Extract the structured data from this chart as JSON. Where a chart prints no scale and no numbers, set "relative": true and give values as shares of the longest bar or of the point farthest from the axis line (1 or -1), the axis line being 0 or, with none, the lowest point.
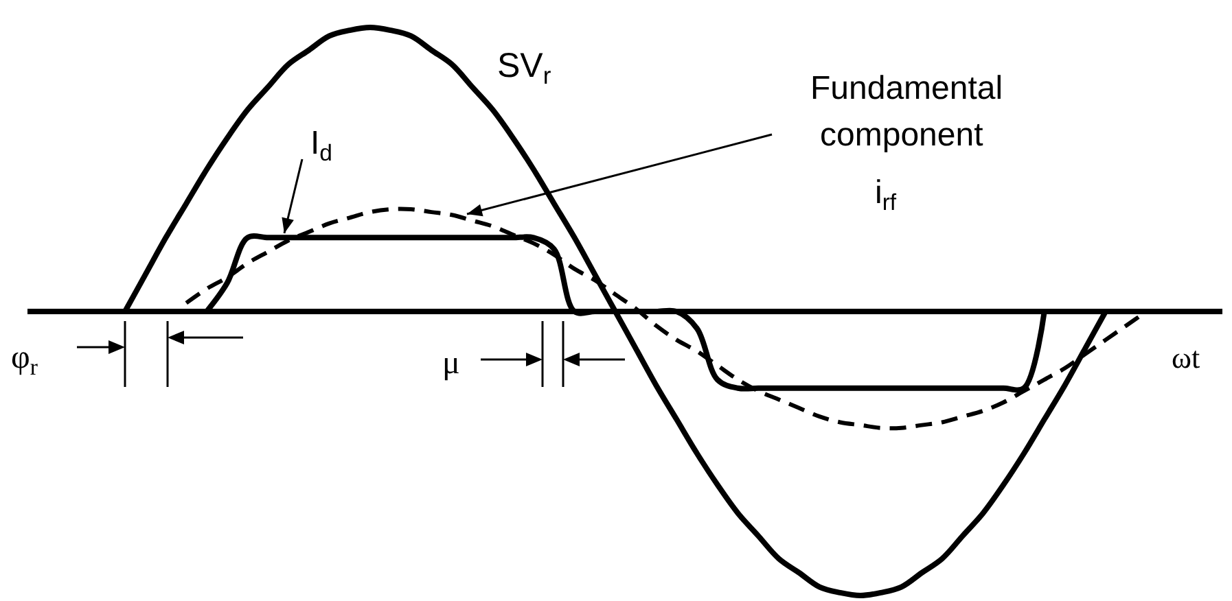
{
  "chart_data": {
    "type": "line",
    "relative": true,
    "xlabel": "ωt",
    "annotations": [
      "φ$_{r}$",
      "μ"
    ],
    "categories": [
      null,
      null,
      null,
      null,
      null,
      null,
      null,
      null,
      null,
      null,
      null,
      null,
      null,
      null,
      null,
      null,
      null,
      null,
      null,
      null,
      null,
      null,
      null,
      null,
      null,
      null,
      null,
      null,
      null,
      null,
      null,
      null,
      null,
      null,
      null,
      null,
      null,
      null,
      null,
      null,
      null,
      null,
      null,
      null,
      null,
      null,
      null,
      null,
      null,
      null,
      null
    ],
    "series": [
      {
        "name": "SV$_{r}$",
        "color": "#000000",
        "line_style": "solid",
        "values": [
          0,
          0.13,
          0.26,
          0.38,
          0.5,
          0.61,
          0.71,
          0.79,
          0.87,
          0.92,
          0.97,
          0.99,
          1,
          0.99,
          0.97,
          0.92,
          0.87,
          0.79,
          0.71,
          0.61,
          0.5,
          0.38,
          0.26,
          0.13,
          0,
          -0.13,
          -0.26,
          -0.38,
          -0.5,
          -0.61,
          -0.71,
          -0.79,
          -0.87,
          -0.92,
          -0.97,
          -0.99,
          -1,
          -0.99,
          -0.97,
          -0.92,
          -0.87,
          -0.79,
          -0.71,
          -0.61,
          -0.5,
          -0.38,
          -0.26,
          -0.13,
          0,
          null,
          null
        ]
      },
      {
        "name": "I$_{d}$",
        "color": "#000000",
        "line_style": "solid",
        "values": [
          null,
          null,
          null,
          null,
          0,
          0.1,
          0.26,
          0.26,
          0.26,
          0.26,
          0.26,
          0.26,
          0.26,
          0.26,
          0.26,
          0.26,
          0.26,
          0.26,
          0.26,
          0.26,
          0.26,
          0.22,
          0,
          0,
          0,
          0,
          0,
          0,
          -0.06,
          -0.24,
          -0.27,
          -0.27,
          -0.27,
          -0.27,
          -0.27,
          -0.27,
          -0.27,
          -0.27,
          -0.27,
          -0.27,
          -0.27,
          -0.27,
          -0.27,
          -0.27,
          -0.27,
          0,
          null,
          null,
          null,
          null,
          null
        ]
      },
      {
        "name": "Fundamental component i$_{rf}$",
        "color": "#000000",
        "line_style": "dashed",
        "values": [
          null,
          null,
          null,
          0.03,
          0.08,
          0.12,
          0.17,
          0.21,
          0.25,
          0.28,
          0.31,
          0.33,
          0.35,
          0.36,
          0.36,
          0.35,
          0.34,
          0.32,
          0.3,
          0.27,
          0.24,
          0.2,
          0.15,
          0.11,
          0.06,
          0.01,
          -0.05,
          -0.1,
          -0.14,
          -0.19,
          -0.24,
          -0.28,
          -0.31,
          -0.34,
          -0.37,
          -0.39,
          -0.4,
          -0.41,
          -0.41,
          -0.4,
          -0.39,
          -0.37,
          -0.35,
          -0.32,
          -0.28,
          -0.24,
          -0.2,
          -0.15,
          -0.1,
          -0.05,
          0
        ]
      }
    ]
  }
}
